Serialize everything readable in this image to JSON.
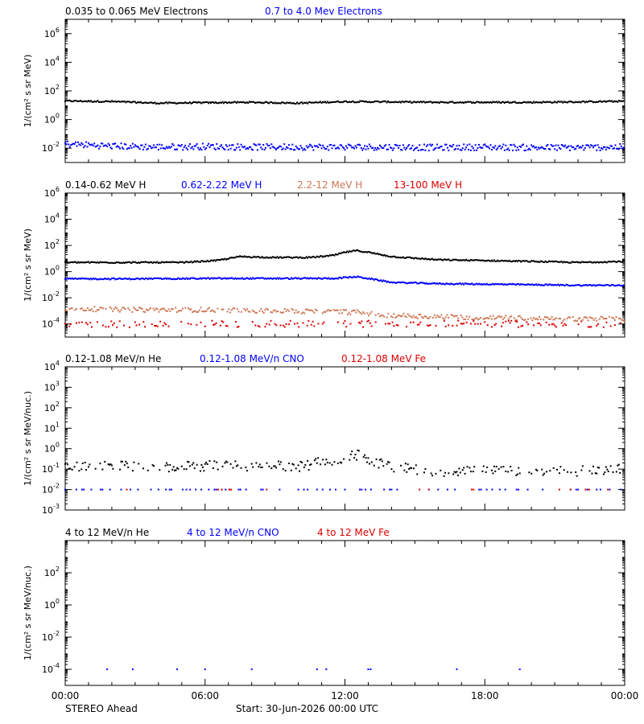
{
  "chart_data": [
    {
      "type": "scatter",
      "ylabel": "1/(cm² s sr MeV)",
      "yscale": "log",
      "ylim": [
        0.001,
        10000000
      ],
      "yticks": [
        {
          "exp": -2,
          "value": 0.01,
          "label": "10",
          "sup": "-2"
        },
        {
          "exp": 0,
          "value": 1,
          "label": "10",
          "sup": "0"
        },
        {
          "exp": 2,
          "value": 100,
          "label": "10",
          "sup": "2"
        },
        {
          "exp": 4,
          "value": 10000,
          "label": "10",
          "sup": "4"
        },
        {
          "exp": 6,
          "value": 1000000,
          "label": "10",
          "sup": "6"
        }
      ],
      "series": [
        {
          "name": "0.035 to 0.065 MeV Electrons",
          "color": "#000000",
          "hours": [
            0,
            2,
            4,
            6,
            8,
            10,
            12,
            14,
            16,
            18,
            20,
            22,
            24
          ],
          "values": [
            20,
            18,
            14,
            15,
            16,
            14,
            18,
            17,
            16,
            16,
            16,
            17,
            19
          ]
        },
        {
          "name": "0.7 to 4.0 Mev Electrons",
          "color": "#0000ff",
          "hours": [
            0,
            2,
            4,
            6,
            8,
            10,
            12,
            14,
            16,
            18,
            20,
            22,
            24
          ],
          "values": [
            0.02,
            0.014,
            0.012,
            0.013,
            0.012,
            0.012,
            0.012,
            0.012,
            0.011,
            0.012,
            0.011,
            0.011,
            0.012
          ]
        }
      ]
    },
    {
      "type": "scatter",
      "ylabel": "1/(cm² s sr MeV)",
      "yscale": "log",
      "ylim": [
        1e-05,
        1000000
      ],
      "yticks": [
        {
          "exp": -4,
          "value": 0.0001,
          "label": "10",
          "sup": "-4"
        },
        {
          "exp": -2,
          "value": 0.01,
          "label": "10",
          "sup": "-2"
        },
        {
          "exp": 0,
          "value": 1,
          "label": "10",
          "sup": "0"
        },
        {
          "exp": 2,
          "value": 100,
          "label": "10",
          "sup": "2"
        },
        {
          "exp": 4,
          "value": 10000,
          "label": "10",
          "sup": "4"
        },
        {
          "exp": 6,
          "value": 1000000,
          "label": "10",
          "sup": "6"
        }
      ],
      "series": [
        {
          "name": "0.14-0.62 MeV H",
          "color": "#000000",
          "hours": [
            0,
            3,
            5,
            6.5,
            7.5,
            9,
            10.5,
            11.5,
            12,
            12.5,
            13,
            14,
            16,
            18,
            20,
            22,
            24
          ],
          "values": [
            5,
            5,
            5,
            7,
            14,
            12,
            12,
            17,
            30,
            40,
            30,
            14,
            8,
            7,
            6,
            5,
            6
          ]
        },
        {
          "name": "0.62-2.22 MeV H",
          "color": "#0000ff",
          "hours": [
            0,
            3,
            6,
            9,
            11.5,
            12,
            12.5,
            13,
            14,
            16,
            18,
            20,
            22,
            24
          ],
          "values": [
            0.28,
            0.28,
            0.3,
            0.3,
            0.3,
            0.35,
            0.4,
            0.3,
            0.15,
            0.12,
            0.11,
            0.1,
            0.09,
            0.09
          ]
        },
        {
          "name": "2.2-12 MeV H",
          "color": "#cc7755",
          "hours": [
            0,
            3,
            6,
            9,
            11,
            12.5,
            13.5,
            15,
            18,
            21,
            24
          ],
          "values": [
            0.0015,
            0.0012,
            0.0012,
            0.001,
            0.0009,
            0.0008,
            0.0005,
            0.0004,
            0.0003,
            0.00025,
            0.00025
          ]
        },
        {
          "name": "13-100 MeV H",
          "color": "#dd0000",
          "hours": [
            0,
            6,
            12,
            18,
            24
          ],
          "values": [
            0.0001,
            0.0001,
            0.0001,
            0.0001,
            0.0001
          ]
        }
      ]
    },
    {
      "type": "scatter",
      "ylabel": "1/(cm² s sr MeV/nuc.)",
      "yscale": "log",
      "ylim": [
        0.001,
        10000
      ],
      "yticks": [
        {
          "exp": -3,
          "value": 0.001,
          "label": "10",
          "sup": "-3"
        },
        {
          "exp": -2,
          "value": 0.01,
          "label": "10",
          "sup": "-2"
        },
        {
          "exp": -1,
          "value": 0.1,
          "label": "10",
          "sup": "-1"
        },
        {
          "exp": 0,
          "value": 1,
          "label": "10",
          "sup": "0"
        },
        {
          "exp": 1,
          "value": 10,
          "label": "10",
          "sup": "1"
        },
        {
          "exp": 2,
          "value": 100,
          "label": "10",
          "sup": "2"
        },
        {
          "exp": 3,
          "value": 1000,
          "label": "10",
          "sup": "3"
        },
        {
          "exp": 4,
          "value": 10000,
          "label": "10",
          "sup": "4"
        }
      ],
      "series": [
        {
          "name": "0.12-1.08 MeV/n He",
          "color": "#000000",
          "hours": [
            0,
            2,
            4,
            6,
            8,
            10,
            12,
            12.5,
            13,
            14,
            16,
            18,
            20,
            22,
            24
          ],
          "values": [
            0.12,
            0.15,
            0.12,
            0.14,
            0.15,
            0.13,
            0.35,
            0.5,
            0.3,
            0.12,
            0.08,
            0.08,
            0.08,
            0.08,
            0.1
          ]
        },
        {
          "name": "0.12-1.08 MeV/n CNO",
          "color": "#0000ff",
          "hours": [
            0,
            6,
            12,
            18,
            24
          ],
          "values": [
            0.01,
            0.01,
            0.01,
            0.01,
            0.01
          ]
        },
        {
          "name": "0.12-1.08 MeV Fe",
          "color": "#dd0000",
          "hours": [
            0,
            6,
            12,
            18,
            24
          ],
          "values": [
            0.01,
            0.01,
            0.01,
            0.01,
            0.01
          ]
        }
      ]
    },
    {
      "type": "scatter",
      "ylabel": "1/(cm² s sr MeV/nuc.)",
      "yscale": "log",
      "ylim": [
        1e-05,
        10000
      ],
      "yticks": [
        {
          "exp": -4,
          "value": 0.0001,
          "label": "10",
          "sup": "-4"
        },
        {
          "exp": -2,
          "value": 0.01,
          "label": "10",
          "sup": "-2"
        },
        {
          "exp": 0,
          "value": 1,
          "label": "10",
          "sup": "0"
        },
        {
          "exp": 2,
          "value": 100,
          "label": "10",
          "sup": "2"
        }
      ],
      "series": [
        {
          "name": "4 to 12 MeV/n He",
          "color": "#000000",
          "hours": [],
          "values": []
        },
        {
          "name": "4 to 12 MeV/n CNO",
          "color": "#0000ff",
          "hours": [
            1.8,
            2.9,
            4.8,
            6.0,
            8.0,
            10.8,
            11.2,
            13.0,
            13.1,
            16.8,
            19.5
          ],
          "values": [
            0.0001,
            0.0001,
            0.0001,
            0.0001,
            0.0001,
            0.0001,
            0.0001,
            0.0001,
            0.0001,
            0.0001,
            0.0001
          ]
        },
        {
          "name": "4 to 12 MeV Fe",
          "color": "#dd0000",
          "hours": [],
          "values": []
        }
      ]
    }
  ],
  "xaxis": {
    "range_hours": [
      0,
      24
    ],
    "ticks": [
      {
        "hour": 0,
        "label": "00:00"
      },
      {
        "hour": 6,
        "label": "06:00"
      },
      {
        "hour": 12,
        "label": "12:00"
      },
      {
        "hour": 18,
        "label": "18:00"
      },
      {
        "hour": 24,
        "label": "00:00"
      }
    ]
  },
  "footer": {
    "spacecraft": "STEREO Ahead",
    "start": "Start: 30-Jun-2026 00:00 UTC"
  }
}
